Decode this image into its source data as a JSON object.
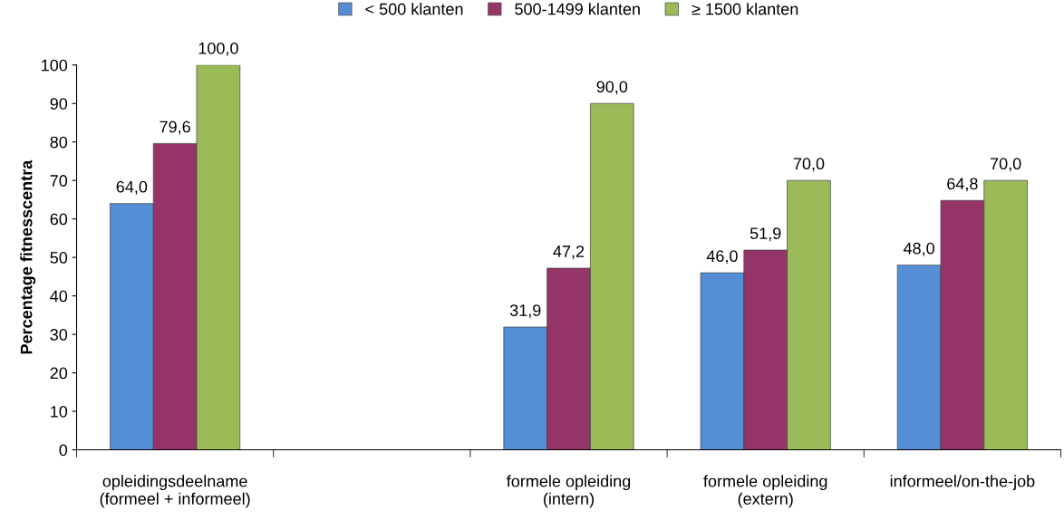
{
  "chart_data": {
    "type": "bar",
    "ylabel": "Percentage fitnesscentra",
    "categories": [
      "opleidingsdeelname\n(formeel + informeel)",
      null,
      "formele opleiding\n(intern)",
      "formele opleiding\n(extern)",
      "informeel/on-the-job"
    ],
    "series": [
      {
        "name": "< 500 klanten",
        "color": "#558ed5",
        "values": [
          64.0,
          null,
          31.9,
          46.0,
          48.0
        ],
        "value_labels": [
          "64,0",
          null,
          "31,9",
          "46,0",
          "48,0"
        ]
      },
      {
        "name": "500-1499 klanten",
        "color": "#953567",
        "values": [
          79.6,
          null,
          47.2,
          51.9,
          64.8
        ],
        "value_labels": [
          "79,6",
          null,
          "47,2",
          "51,9",
          "64,8"
        ]
      },
      {
        "name": "≥ 1500 klanten",
        "color": "#9bbb59",
        "values": [
          100.0,
          null,
          90.0,
          70.0,
          70.0
        ],
        "value_labels": [
          "100,0",
          null,
          "90,0",
          "70,0",
          "70,0"
        ]
      }
    ],
    "ylim": [
      0,
      100
    ],
    "yticks": [
      0,
      10,
      20,
      30,
      40,
      50,
      60,
      70,
      80,
      90,
      100
    ],
    "grid": false,
    "legend": "top"
  }
}
